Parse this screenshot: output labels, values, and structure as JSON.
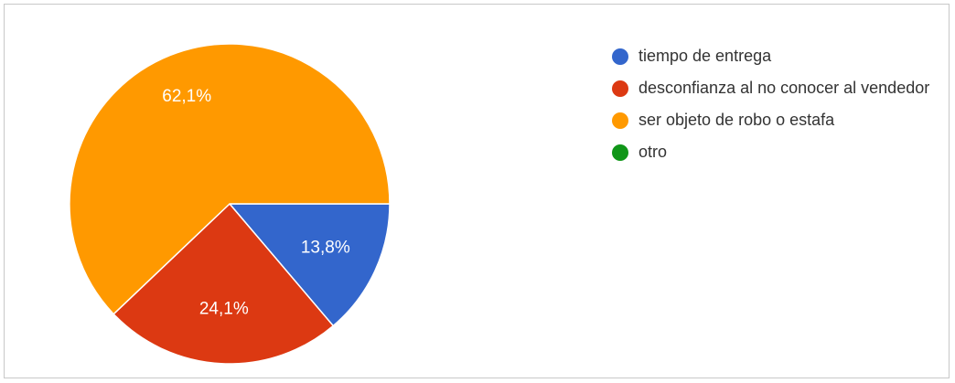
{
  "chart_data": {
    "type": "pie",
    "slices": [
      {
        "label": "tiempo de entrega",
        "value": 13.8,
        "value_label": "13,8%",
        "color": "#3366cc"
      },
      {
        "label": "desconfianza al no conocer al vendedor",
        "value": 24.1,
        "value_label": "24,1%",
        "color": "#dc3912"
      },
      {
        "label": "ser objeto de robo o estafa",
        "value": 62.1,
        "value_label": "62,1%",
        "color": "#ff9900"
      },
      {
        "label": "otro",
        "value": 0,
        "value_label": "",
        "color": "#109618"
      }
    ],
    "legend_position": "right"
  }
}
